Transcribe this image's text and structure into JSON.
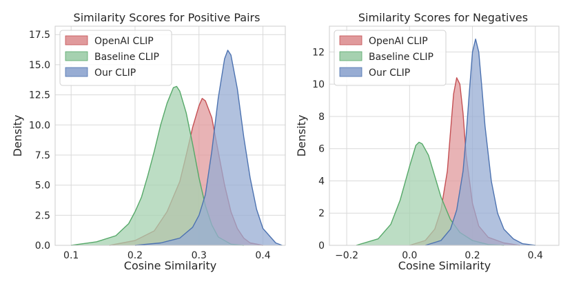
{
  "chart_data": [
    {
      "type": "area",
      "title": "Similarity Scores for Positive Pairs",
      "xlabel": "Cosine Similarity",
      "ylabel": "Density",
      "xlim": [
        0.075,
        0.435
      ],
      "ylim": [
        0,
        18.2
      ],
      "xticks": [
        0.1,
        0.2,
        0.3,
        0.4
      ],
      "xtick_labels": [
        "0.1",
        "0.2",
        "0.3",
        "0.4"
      ],
      "yticks": [
        0,
        2.5,
        5,
        7.5,
        10,
        12.5,
        15,
        17.5
      ],
      "ytick_labels": [
        "0.0",
        "2.5",
        "5.0",
        "7.5",
        "10.0",
        "12.5",
        "15.0",
        "17.5"
      ],
      "grid": true,
      "legend_position": "top-left",
      "series": [
        {
          "name": "OpenAI CLIP",
          "color": "#c44e52",
          "fill": "#e09a9c",
          "x": [
            0.16,
            0.2,
            0.23,
            0.25,
            0.27,
            0.28,
            0.29,
            0.3,
            0.305,
            0.31,
            0.32,
            0.33,
            0.34,
            0.35,
            0.36,
            0.37,
            0.38,
            0.4
          ],
          "y": [
            0,
            0.4,
            1.2,
            2.8,
            5.3,
            7.5,
            9.8,
            11.6,
            12.2,
            12.0,
            10.6,
            7.8,
            5.0,
            2.8,
            1.4,
            0.6,
            0.2,
            0
          ]
        },
        {
          "name": "Baseline CLIP",
          "color": "#55a868",
          "fill": "#a6d1b0",
          "x": [
            0.1,
            0.14,
            0.17,
            0.19,
            0.2,
            0.21,
            0.22,
            0.23,
            0.24,
            0.25,
            0.26,
            0.265,
            0.27,
            0.28,
            0.29,
            0.3,
            0.31,
            0.32,
            0.33,
            0.35,
            0.37
          ],
          "y": [
            0,
            0.3,
            0.8,
            1.8,
            2.8,
            4.0,
            5.8,
            7.8,
            10.0,
            11.8,
            13.1,
            13.2,
            12.8,
            11.0,
            8.4,
            5.6,
            3.3,
            1.7,
            0.7,
            0.1,
            0
          ]
        },
        {
          "name": "Our CLIP",
          "color": "#4c72b0",
          "fill": "#97acd3",
          "x": [
            0.2,
            0.24,
            0.27,
            0.29,
            0.3,
            0.31,
            0.32,
            0.33,
            0.34,
            0.345,
            0.35,
            0.36,
            0.37,
            0.38,
            0.39,
            0.4,
            0.42,
            0.43
          ],
          "y": [
            0,
            0.2,
            0.6,
            1.5,
            2.5,
            4.2,
            7.8,
            12.2,
            15.5,
            16.2,
            15.8,
            13.0,
            9.0,
            5.6,
            3.0,
            1.4,
            0.2,
            0
          ]
        }
      ],
      "legend": [
        "OpenAI CLIP",
        "Baseline CLIP",
        "Our CLIP"
      ]
    },
    {
      "type": "area",
      "title": "Similarity Scores for Negatives",
      "xlabel": "Cosine Similarity",
      "ylabel": "Density",
      "xlim": [
        -0.255,
        0.475
      ],
      "ylim": [
        0,
        13.6
      ],
      "xticks": [
        -0.2,
        0.0,
        0.2,
        0.4
      ],
      "xtick_labels": [
        "−0.2",
        "0.0",
        "0.2",
        "0.4"
      ],
      "yticks": [
        0,
        2,
        4,
        6,
        8,
        10,
        12
      ],
      "ytick_labels": [
        "0",
        "2",
        "4",
        "6",
        "8",
        "10",
        "12"
      ],
      "grid": true,
      "legend_position": "top-left",
      "series": [
        {
          "name": "OpenAI CLIP",
          "color": "#c44e52",
          "fill": "#e09a9c",
          "x": [
            0.0,
            0.05,
            0.08,
            0.1,
            0.12,
            0.13,
            0.14,
            0.15,
            0.16,
            0.17,
            0.18,
            0.2,
            0.22,
            0.25,
            0.3,
            0.35
          ],
          "y": [
            0,
            0.3,
            1.0,
            2.2,
            4.6,
            7.0,
            9.4,
            10.4,
            10.0,
            8.2,
            5.6,
            2.6,
            1.2,
            0.5,
            0.15,
            0
          ]
        },
        {
          "name": "Baseline CLIP",
          "color": "#55a868",
          "fill": "#a6d1b0",
          "x": [
            -0.17,
            -0.1,
            -0.06,
            -0.03,
            0.0,
            0.02,
            0.03,
            0.04,
            0.06,
            0.08,
            0.1,
            0.13,
            0.16,
            0.2,
            0.25,
            0.3
          ],
          "y": [
            0,
            0.4,
            1.3,
            2.8,
            4.9,
            6.2,
            6.4,
            6.3,
            5.6,
            4.3,
            3.0,
            1.6,
            0.8,
            0.3,
            0.05,
            0
          ]
        },
        {
          "name": "Our CLIP",
          "color": "#4c72b0",
          "fill": "#97acd3",
          "x": [
            0.05,
            0.1,
            0.13,
            0.15,
            0.17,
            0.18,
            0.19,
            0.2,
            0.21,
            0.22,
            0.23,
            0.24,
            0.26,
            0.28,
            0.3,
            0.33,
            0.36,
            0.4
          ],
          "y": [
            0,
            0.3,
            1.0,
            2.2,
            4.6,
            6.8,
            9.5,
            12.0,
            12.8,
            12.0,
            9.8,
            7.4,
            4.0,
            2.0,
            1.0,
            0.4,
            0.1,
            0
          ]
        }
      ],
      "legend": [
        "OpenAI CLIP",
        "Baseline CLIP",
        "Our CLIP"
      ]
    }
  ]
}
